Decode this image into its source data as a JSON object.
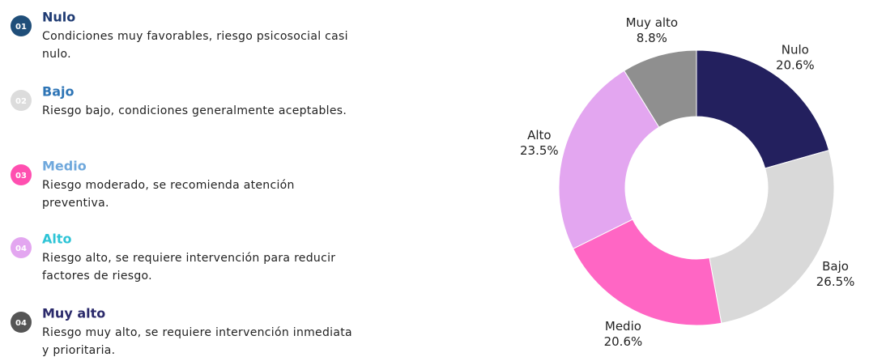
{
  "items": [
    {
      "badge": "01",
      "title": "Nulo",
      "lines": [
        "Condiciones muy favorables, riesgo psicosocial casi",
        "nulo."
      ],
      "badge_color": "#1f4e79",
      "title_color": "#1f3b73"
    },
    {
      "badge": "02",
      "title": "Bajo",
      "lines": [
        "Riesgo bajo, condiciones generalmente aceptables."
      ],
      "badge_color": "#dcdcdc",
      "title_color": "#2e75b6"
    },
    {
      "badge": "03",
      "title": "Medio",
      "lines": [
        "Riesgo moderado,  se recomienda atención",
        "preventiva."
      ],
      "badge_color": "#ff4fb0",
      "title_color": "#6fa8dc"
    },
    {
      "badge": "04",
      "title": "Alto",
      "lines": [
        "Riesgo alto, se requiere intervención para reducir",
        "factores de riesgo."
      ],
      "badge_color": "#e3a6f0",
      "title_color": "#2ec4d6"
    },
    {
      "badge": "04",
      "title": "Muy alto",
      "lines": [
        "Riesgo muy alto, se requiere intervención inmediata",
        "y prioritaria."
      ],
      "badge_color": "#555555",
      "title_color": "#2b2a6b"
    }
  ],
  "chart_data": {
    "type": "pie",
    "donut": true,
    "categories": [
      "Nulo",
      "Bajo",
      "Medio",
      "Alto",
      "Muy alto"
    ],
    "values": [
      20.6,
      26.5,
      20.6,
      23.5,
      8.8
    ],
    "value_labels": [
      "20.6%",
      "26.5%",
      "20.6%",
      "23.5%",
      "8.8%"
    ],
    "colors": [
      "#23205e",
      "#d9d9d9",
      "#ff66c4",
      "#e3a6f0",
      "#8f8f8f"
    ]
  }
}
